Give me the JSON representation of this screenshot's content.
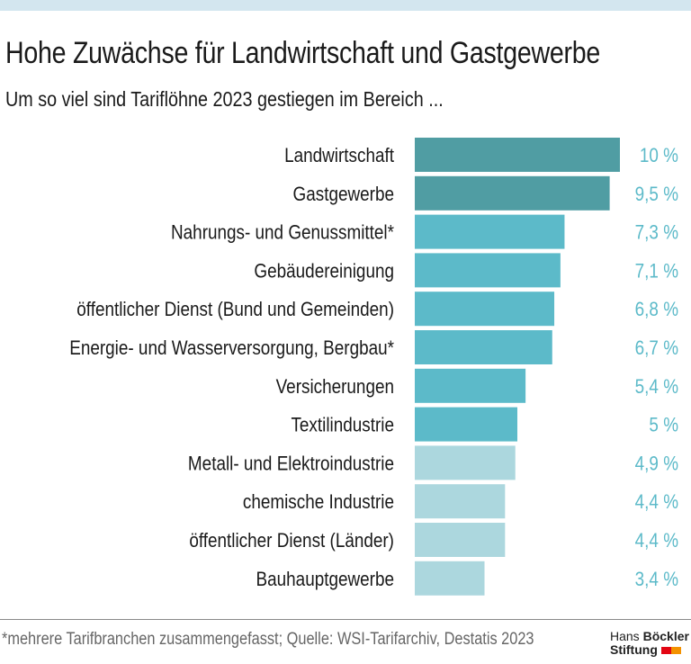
{
  "title": "Hohe Zuwächse für Landwirtschaft und Gastgewerbe",
  "subtitle": "Um so viel sind Tariflöhne 2023 gestiegen im Bereich ...",
  "footnote": "*mehrere Tarifbranchen zusammengefasst; Quelle: WSI-Tarifarchiv, Destatis 2023",
  "logo": {
    "line1a": "Hans",
    "line1b": "Böckler",
    "line2": "Stiftung",
    "colors": [
      "#e30613",
      "#f39200"
    ]
  },
  "colors": {
    "dark": "#509da3",
    "mid": "#5cbac9",
    "light": "#acd7de",
    "value_text": "#5cbac9",
    "top_band": "#d3e6ef"
  },
  "chart_data": {
    "type": "bar",
    "orientation": "horizontal",
    "unit": "%",
    "categories": [
      "Landwirtschaft",
      "Gastgewerbe",
      "Nahrungs- und Genussmittel*",
      "Gebäudereinigung",
      "öffentlicher Dienst (Bund und Gemeinden)",
      "Energie- und Wasserversorgung, Bergbau*",
      "Versicherungen",
      "Textilindustrie",
      "Metall- und Elektroindustrie",
      "chemische Industrie",
      "öffentlicher Dienst (Länder)",
      "Bauhauptgewerbe"
    ],
    "values": [
      10,
      9.5,
      7.3,
      7.1,
      6.8,
      6.7,
      5.4,
      5,
      4.9,
      4.4,
      4.4,
      3.4
    ],
    "value_labels": [
      "10 %",
      "9,5 %",
      "7,3 %",
      "7,1 %",
      "6,8 %",
      "6,7 %",
      "5,4 %",
      "5 %",
      "4,9 %",
      "4,4 %",
      "4,4 %",
      "3,4 %"
    ],
    "bar_color_groups": [
      "dark",
      "dark",
      "mid",
      "mid",
      "mid",
      "mid",
      "mid",
      "mid",
      "light",
      "light",
      "light",
      "light"
    ],
    "xlim": [
      0,
      10
    ],
    "grid": false,
    "legend": "none"
  }
}
